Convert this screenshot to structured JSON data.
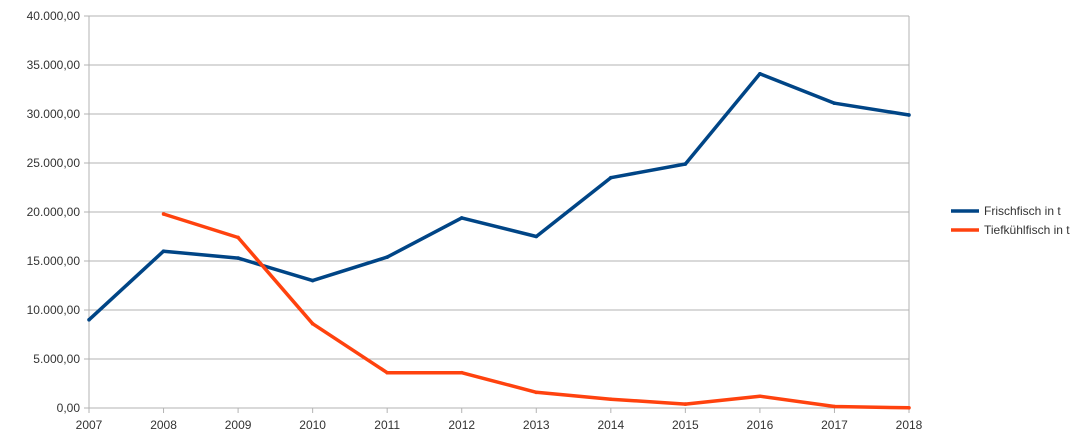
{
  "chart_data": {
    "type": "line",
    "title": "",
    "xlabel": "",
    "ylabel": "",
    "categories": [
      "2007",
      "2008",
      "2009",
      "2010",
      "2011",
      "2012",
      "2013",
      "2014",
      "2015",
      "2016",
      "2017",
      "2018"
    ],
    "ylim": [
      0,
      40000
    ],
    "yticks": [
      0,
      5000,
      10000,
      15000,
      20000,
      25000,
      30000,
      35000,
      40000
    ],
    "ytick_labels": [
      "0,00",
      "5.000,00",
      "10.000,00",
      "15.000,00",
      "20.000,00",
      "25.000,00",
      "30.000,00",
      "35.000,00",
      "40.000,00"
    ],
    "grid": true,
    "legend_position": "right",
    "series": [
      {
        "name": "Frischfisch in t",
        "color": "#004586",
        "values": [
          9000,
          16000,
          15300,
          13000,
          15400,
          19400,
          17500,
          23500,
          24900,
          34100,
          31100,
          29900
        ]
      },
      {
        "name": "Tiefkühlfisch in t",
        "color": "#ff420e",
        "values": [
          null,
          19800,
          17400,
          8600,
          3600,
          3600,
          1600,
          900,
          400,
          1200,
          150,
          20
        ]
      }
    ]
  }
}
